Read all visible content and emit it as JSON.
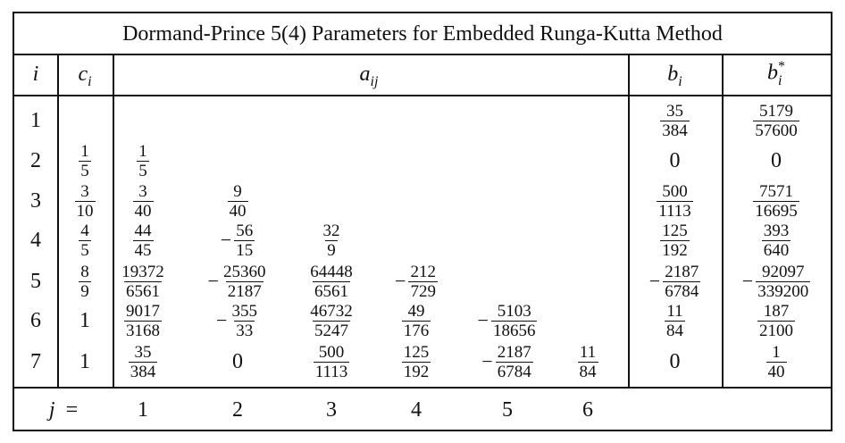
{
  "title": "Dormand-Prince 5(4) Parameters for Embedded Runga-Kutta Method",
  "headers": {
    "i": "i",
    "c_base": "c",
    "c_sub": "i",
    "a_base": "a",
    "a_sub": "ij",
    "b_base": "b",
    "b_sub": "i",
    "bs_base": "b",
    "bs_sup": "*",
    "bs_sub": "i"
  },
  "rows": [
    {
      "i": "1",
      "c": null,
      "a": [],
      "b": {
        "neg": false,
        "num": "35",
        "den": "384"
      },
      "bs": {
        "neg": false,
        "num": "5179",
        "den": "57600"
      }
    },
    {
      "i": "2",
      "c": {
        "neg": false,
        "num": "1",
        "den": "5"
      },
      "a": [
        {
          "neg": false,
          "num": "1",
          "den": "5"
        }
      ],
      "b": {
        "text": "0"
      },
      "bs": {
        "text": "0"
      }
    },
    {
      "i": "3",
      "c": {
        "neg": false,
        "num": "3",
        "den": "10"
      },
      "a": [
        {
          "neg": false,
          "num": "3",
          "den": "40"
        },
        {
          "neg": false,
          "num": "9",
          "den": "40"
        }
      ],
      "b": {
        "neg": false,
        "num": "500",
        "den": "1113"
      },
      "bs": {
        "neg": false,
        "num": "7571",
        "den": "16695"
      }
    },
    {
      "i": "4",
      "c": {
        "neg": false,
        "num": "4",
        "den": "5"
      },
      "a": [
        {
          "neg": false,
          "num": "44",
          "den": "45"
        },
        {
          "neg": true,
          "num": "56",
          "den": "15"
        },
        {
          "neg": false,
          "num": "32",
          "den": "9"
        }
      ],
      "b": {
        "neg": false,
        "num": "125",
        "den": "192"
      },
      "bs": {
        "neg": false,
        "num": "393",
        "den": "640"
      }
    },
    {
      "i": "5",
      "c": {
        "neg": false,
        "num": "8",
        "den": "9"
      },
      "a": [
        {
          "neg": false,
          "num": "19372",
          "den": "6561"
        },
        {
          "neg": true,
          "num": "25360",
          "den": "2187"
        },
        {
          "neg": false,
          "num": "64448",
          "den": "6561"
        },
        {
          "neg": true,
          "num": "212",
          "den": "729"
        }
      ],
      "b": {
        "neg": true,
        "num": "2187",
        "den": "6784"
      },
      "bs": {
        "neg": true,
        "num": "92097",
        "den": "339200"
      }
    },
    {
      "i": "6",
      "c": {
        "text": "1"
      },
      "a": [
        {
          "neg": false,
          "num": "9017",
          "den": "3168"
        },
        {
          "neg": true,
          "num": "355",
          "den": "33"
        },
        {
          "neg": false,
          "num": "46732",
          "den": "5247"
        },
        {
          "neg": false,
          "num": "49",
          "den": "176"
        },
        {
          "neg": true,
          "num": "5103",
          "den": "18656"
        }
      ],
      "b": {
        "neg": false,
        "num": "11",
        "den": "84"
      },
      "bs": {
        "neg": false,
        "num": "187",
        "den": "2100"
      }
    },
    {
      "i": "7",
      "c": {
        "text": "1"
      },
      "a": [
        {
          "neg": false,
          "num": "35",
          "den": "384"
        },
        {
          "text": "0"
        },
        {
          "neg": false,
          "num": "500",
          "den": "1113"
        },
        {
          "neg": false,
          "num": "125",
          "den": "192"
        },
        {
          "neg": true,
          "num": "2187",
          "den": "6784"
        },
        {
          "neg": false,
          "num": "11",
          "den": "84"
        }
      ],
      "b": {
        "text": "0"
      },
      "bs": {
        "neg": false,
        "num": "1",
        "den": "40"
      }
    }
  ],
  "footer": {
    "j_label": "j",
    "equals": "=",
    "j_values": [
      "1",
      "2",
      "3",
      "4",
      "5",
      "6"
    ]
  }
}
